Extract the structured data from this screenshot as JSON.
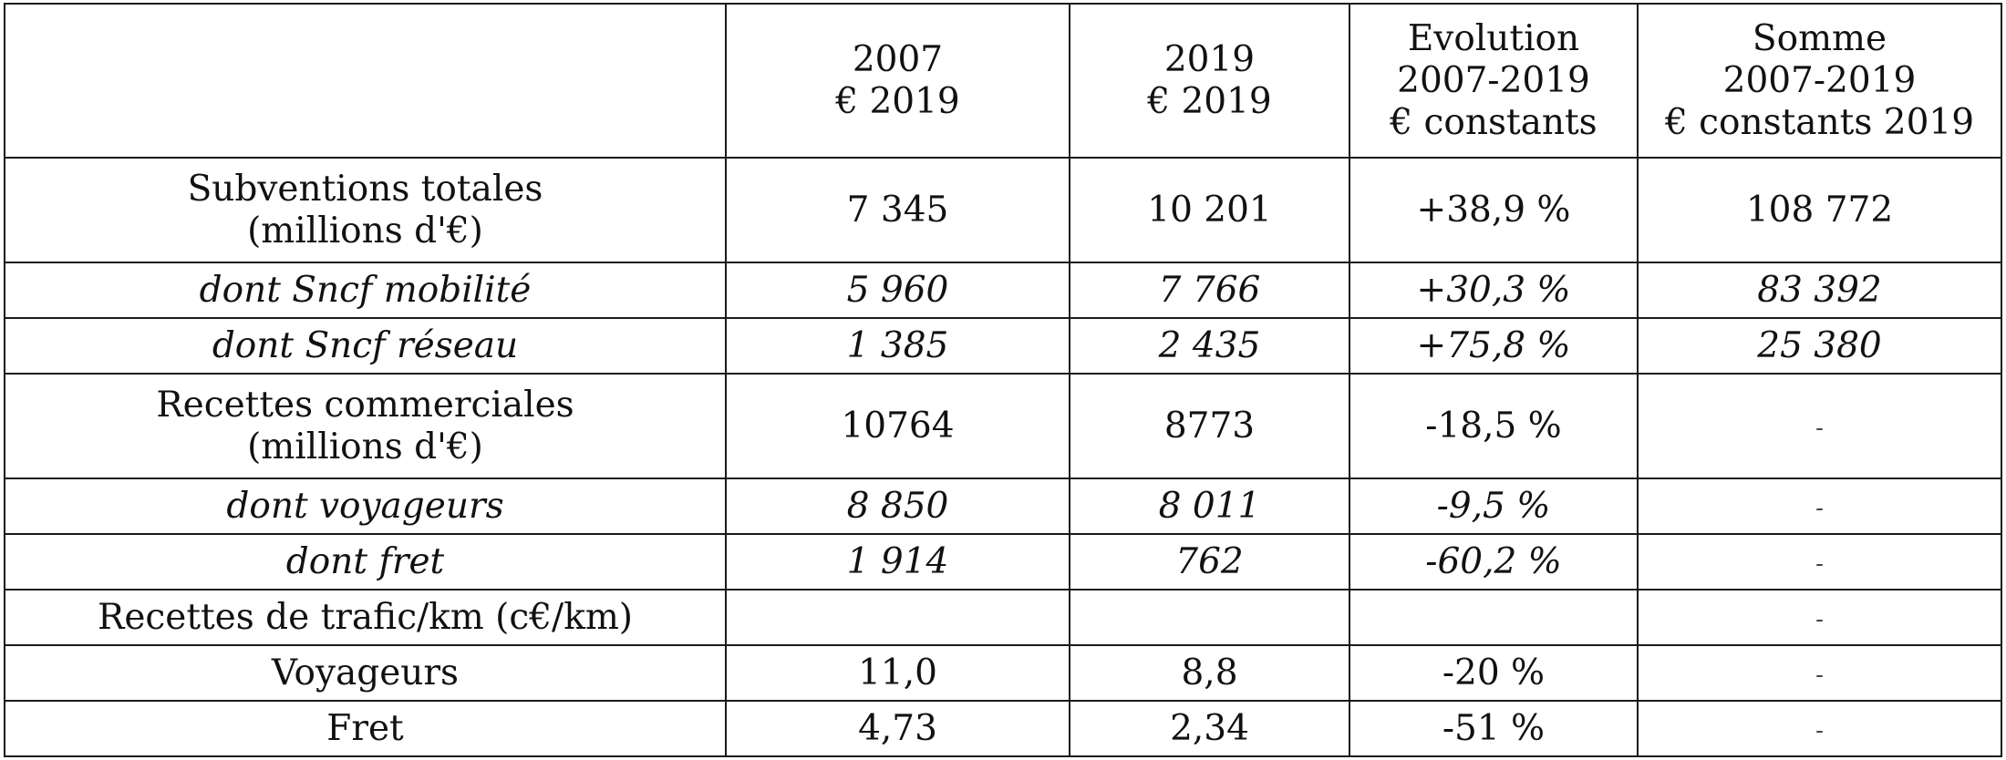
{
  "table": {
    "headers": [
      [
        ""
      ],
      [
        "2007",
        "€  2019"
      ],
      [
        "2019",
        "€ 2019"
      ],
      [
        "Evolution",
        "2007-2019",
        "€ constants"
      ],
      [
        "Somme",
        "2007-2019",
        "€ constants 2019"
      ]
    ],
    "rows": [
      {
        "label": [
          "Subventions totales",
          "(millions d'€)"
        ],
        "cells": [
          "7 345",
          "10 201",
          "+38,9 %",
          "108 772"
        ],
        "italic": false,
        "tall": true
      },
      {
        "label": [
          "dont Sncf mobilité"
        ],
        "cells": [
          "5 960",
          "7 766",
          "+30,3 %",
          "83 392"
        ],
        "italic": true,
        "tall": false
      },
      {
        "label": [
          "dont  Sncf réseau"
        ],
        "cells": [
          "1 385",
          "2 435",
          "+75,8 %",
          "25 380"
        ],
        "italic": true,
        "tall": false
      },
      {
        "label": [
          "Recettes commerciales",
          "(millions d'€)"
        ],
        "cells": [
          "10764",
          "8773",
          "-18,5 %",
          "-"
        ],
        "italic": false,
        "tall": true
      },
      {
        "label": [
          "dont voyageurs"
        ],
        "cells": [
          "8 850",
          "8 011",
          "-9,5 %",
          "-"
        ],
        "italic": true,
        "tall": false
      },
      {
        "label": [
          "dont fret"
        ],
        "cells": [
          "1 914",
          "762",
          "-60,2 %",
          "-"
        ],
        "italic": true,
        "tall": false
      },
      {
        "label": [
          "Recettes de trafic/km (c€/km)"
        ],
        "cells": [
          "",
          "",
          "",
          "-"
        ],
        "italic": false,
        "tall": false
      },
      {
        "label": [
          "Voyageurs"
        ],
        "cells": [
          "11,0",
          "8,8",
          "-20 %",
          "-"
        ],
        "italic": false,
        "tall": false
      },
      {
        "label": [
          "Fret"
        ],
        "cells": [
          "4,73",
          "2,34",
          "-51 %",
          "-"
        ],
        "italic": false,
        "tall": false
      }
    ]
  }
}
